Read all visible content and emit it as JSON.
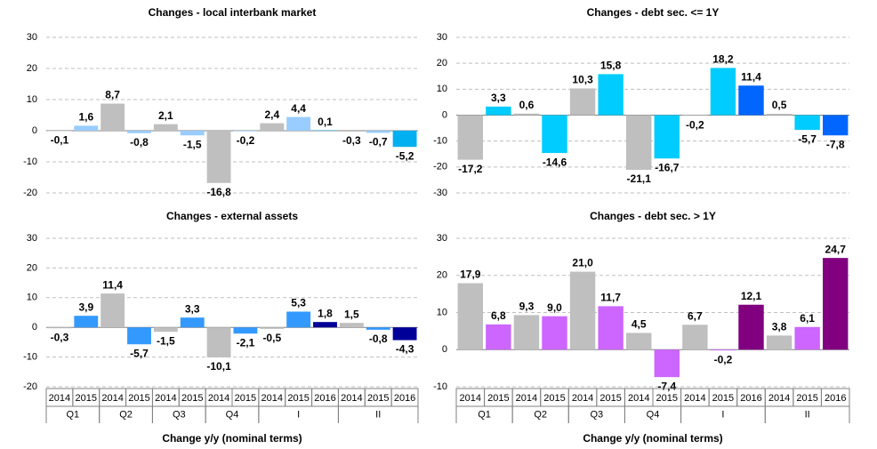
{
  "chart_data": [
    {
      "type": "bar",
      "title": "Changes - local interbank market",
      "values": [
        -0.1,
        1.6,
        8.7,
        -0.8,
        2.1,
        -1.5,
        -16.8,
        -0.2,
        2.4,
        4.4,
        0.1,
        -0.3,
        -0.7,
        -5.2
      ],
      "value_labels": [
        "-0,1",
        "1,6",
        "8,7",
        "-0,8",
        "2,1",
        "-1,5",
        "-16,8",
        "-0,2",
        "2,4",
        "4,4",
        "0,1",
        "-0,3",
        "-0,7",
        "-5,2"
      ],
      "colors": [
        "#bfbfbf",
        "#99ccff",
        "#bfbfbf",
        "#99ccff",
        "#bfbfbf",
        "#99ccff",
        "#bfbfbf",
        "#99ccff",
        "#bfbfbf",
        "#99ccff",
        "#00b0f0",
        "#bfbfbf",
        "#99ccff",
        "#00b0f0"
      ],
      "ylim": [
        -20,
        30
      ],
      "yticks": [
        -20,
        -10,
        0,
        10,
        20,
        30
      ],
      "grid": true
    },
    {
      "type": "bar",
      "title": "Changes - debt sec. <= 1Y",
      "values": [
        -17.2,
        3.3,
        0.6,
        -14.6,
        10.3,
        15.8,
        -21.1,
        -16.7,
        -0.2,
        18.2,
        11.4,
        0.5,
        -5.7,
        -7.8
      ],
      "value_labels": [
        "-17,2",
        "3,3",
        "0,6",
        "-14,6",
        "10,3",
        "15,8",
        "-21,1",
        "-16,7",
        "-0,2",
        "18,2",
        "11,4",
        "0,5",
        "-5,7",
        "-7,8"
      ],
      "colors": [
        "#bfbfbf",
        "#00ccff",
        "#bfbfbf",
        "#00ccff",
        "#bfbfbf",
        "#00ccff",
        "#bfbfbf",
        "#00ccff",
        "#bfbfbf",
        "#00ccff",
        "#0066ff",
        "#bfbfbf",
        "#00ccff",
        "#0066ff"
      ],
      "ylim": [
        -30,
        30
      ],
      "yticks": [
        -30,
        -20,
        -10,
        0,
        10,
        20,
        30
      ],
      "grid": true
    },
    {
      "type": "bar",
      "title": "Changes - external assets",
      "x_label": "Change y/y (nominal terms)",
      "groups": [
        {
          "label": "Q1",
          "categories": [
            "2014",
            "2015"
          ]
        },
        {
          "label": "Q2",
          "categories": [
            "2014",
            "2015"
          ]
        },
        {
          "label": "Q3",
          "categories": [
            "2014",
            "2015"
          ]
        },
        {
          "label": "Q4",
          "categories": [
            "2014",
            "2015"
          ]
        },
        {
          "label": "I",
          "categories": [
            "2014",
            "2015",
            "2016"
          ]
        },
        {
          "label": "II",
          "categories": [
            "2014",
            "2015",
            "2016"
          ]
        }
      ],
      "values": [
        -0.3,
        3.9,
        11.4,
        -5.7,
        -1.5,
        3.3,
        -10.1,
        -2.1,
        -0.5,
        5.3,
        1.8,
        1.5,
        -0.8,
        -4.3
      ],
      "value_labels": [
        "-0,3",
        "3,9",
        "11,4",
        "-5,7",
        "-1,5",
        "3,3",
        "-10,1",
        "-2,1",
        "-0,5",
        "5,3",
        "1,8",
        "1,5",
        "-0,8",
        "-4,3"
      ],
      "colors": [
        "#bfbfbf",
        "#3399ff",
        "#bfbfbf",
        "#3399ff",
        "#bfbfbf",
        "#3399ff",
        "#bfbfbf",
        "#3399ff",
        "#bfbfbf",
        "#3399ff",
        "#000099",
        "#bfbfbf",
        "#3399ff",
        "#000099"
      ],
      "ylim": [
        -20,
        30
      ],
      "yticks": [
        -20,
        -10,
        0,
        10,
        20,
        30
      ],
      "grid": true
    },
    {
      "type": "bar",
      "title": "Changes - debt sec. > 1Y",
      "x_label": "Change y/y (nominal terms)",
      "groups": [
        {
          "label": "Q1",
          "categories": [
            "2014",
            "2015"
          ]
        },
        {
          "label": "Q2",
          "categories": [
            "2014",
            "2015"
          ]
        },
        {
          "label": "Q3",
          "categories": [
            "2014",
            "2015"
          ]
        },
        {
          "label": "Q4",
          "categories": [
            "2014",
            "2015"
          ]
        },
        {
          "label": "I",
          "categories": [
            "2014",
            "2015",
            "2016"
          ]
        },
        {
          "label": "II",
          "categories": [
            "2014",
            "2015",
            "2016"
          ]
        }
      ],
      "values": [
        17.9,
        6.8,
        9.3,
        9.0,
        21.0,
        11.7,
        4.5,
        -7.4,
        6.7,
        -0.2,
        12.1,
        3.8,
        6.1,
        24.7
      ],
      "value_labels": [
        "17,9",
        "6,8",
        "9,3",
        "9,0",
        "21,0",
        "11,7",
        "4,5",
        "-7,4",
        "6,7",
        "-0,2",
        "12,1",
        "3,8",
        "6,1",
        "24,7"
      ],
      "colors": [
        "#bfbfbf",
        "#cc66ff",
        "#bfbfbf",
        "#cc66ff",
        "#bfbfbf",
        "#cc66ff",
        "#bfbfbf",
        "#cc66ff",
        "#bfbfbf",
        "#cc66ff",
        "#800080",
        "#bfbfbf",
        "#cc66ff",
        "#800080"
      ],
      "ylim": [
        -10,
        30
      ],
      "yticks": [
        -10,
        0,
        10,
        20,
        30
      ],
      "grid": true
    }
  ]
}
